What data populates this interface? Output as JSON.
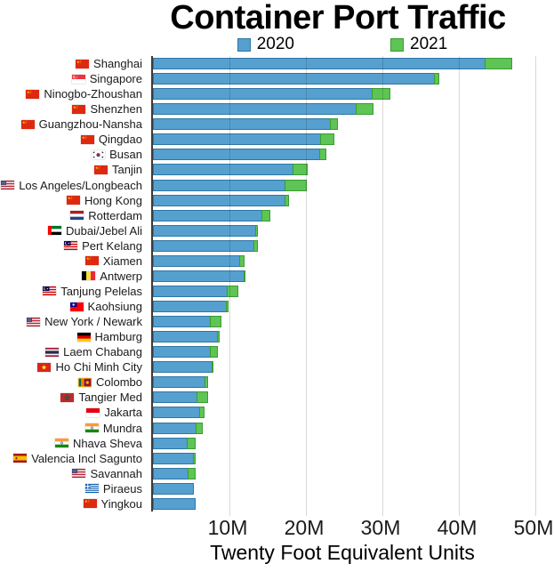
{
  "chart_data": {
    "type": "bar",
    "orientation": "horizontal",
    "title": "Container Port Traffic",
    "xlabel": "Twenty Foot Equivalent Units",
    "x_ticks": [
      "10M",
      "20M",
      "30M",
      "40M",
      "50M"
    ],
    "xlim_millions": [
      0,
      50
    ],
    "grid": true,
    "legend_position": "top",
    "value_unit": "million TEU",
    "bar_style": "overlaid; green (2021) visible only where it exceeds blue (2020)",
    "series": [
      {
        "name": "2020",
        "color": "#55A0CF",
        "border_color": "#2F76A6"
      },
      {
        "name": "2021",
        "color": "#5EC455",
        "border_color": "#3A9C30"
      }
    ],
    "ports": [
      {
        "name": "Shanghai",
        "country": "cn",
        "teu_2020_millions": 43.5,
        "teu_2021_millions": 47.0
      },
      {
        "name": "Singapore",
        "country": "sg",
        "teu_2020_millions": 36.9,
        "teu_2021_millions": 37.5
      },
      {
        "name": "Ninogbo-Zhoushan",
        "country": "cn",
        "teu_2020_millions": 28.7,
        "teu_2021_millions": 31.1
      },
      {
        "name": "Shenzhen",
        "country": "cn",
        "teu_2020_millions": 26.6,
        "teu_2021_millions": 28.8
      },
      {
        "name": "Guangzhou-Nansha",
        "country": "cn",
        "teu_2020_millions": 23.2,
        "teu_2021_millions": 24.2
      },
      {
        "name": "Qingdao",
        "country": "cn",
        "teu_2020_millions": 22.0,
        "teu_2021_millions": 23.7
      },
      {
        "name": "Busan",
        "country": "kr",
        "teu_2020_millions": 21.8,
        "teu_2021_millions": 22.7
      },
      {
        "name": "Tanjin",
        "country": "cn",
        "teu_2020_millions": 18.4,
        "teu_2021_millions": 20.3
      },
      {
        "name": "Los Angeles/Longbeach",
        "country": "us",
        "teu_2020_millions": 17.3,
        "teu_2021_millions": 20.1
      },
      {
        "name": "Hong Kong",
        "country": "cn",
        "teu_2020_millions": 17.3,
        "teu_2021_millions": 17.8
      },
      {
        "name": "Rotterdam",
        "country": "nl",
        "teu_2020_millions": 14.3,
        "teu_2021_millions": 15.3
      },
      {
        "name": "Dubai/Jebel Ali",
        "country": "ae",
        "teu_2020_millions": 13.5,
        "teu_2021_millions": 13.7
      },
      {
        "name": "Pert Kelang",
        "country": "my",
        "teu_2020_millions": 13.2,
        "teu_2021_millions": 13.7
      },
      {
        "name": "Xiamen",
        "country": "cn",
        "teu_2020_millions": 11.4,
        "teu_2021_millions": 12.0
      },
      {
        "name": "Antwerp",
        "country": "be",
        "teu_2020_millions": 12.0,
        "teu_2021_millions": 12.1
      },
      {
        "name": "Tanjung Pelelas",
        "country": "my",
        "teu_2020_millions": 9.8,
        "teu_2021_millions": 11.2
      },
      {
        "name": "Kaohsiung",
        "country": "tw",
        "teu_2020_millions": 9.6,
        "teu_2021_millions": 9.9
      },
      {
        "name": "New York / Newark",
        "country": "us",
        "teu_2020_millions": 7.6,
        "teu_2021_millions": 9.0
      },
      {
        "name": "Hamburg",
        "country": "de",
        "teu_2020_millions": 8.5,
        "teu_2021_millions": 8.7
      },
      {
        "name": "Laem Chabang",
        "country": "th",
        "teu_2020_millions": 7.5,
        "teu_2021_millions": 8.5
      },
      {
        "name": "Ho Chi Minh City",
        "country": "vn",
        "teu_2020_millions": 7.8,
        "teu_2021_millions": 7.9
      },
      {
        "name": "Colombo",
        "country": "lk",
        "teu_2020_millions": 6.9,
        "teu_2021_millions": 7.2
      },
      {
        "name": "Tangier Med",
        "country": "ma",
        "teu_2020_millions": 5.8,
        "teu_2021_millions": 7.2
      },
      {
        "name": "Jakarta",
        "country": "id",
        "teu_2020_millions": 6.2,
        "teu_2021_millions": 6.7
      },
      {
        "name": "Mundra",
        "country": "in",
        "teu_2020_millions": 5.7,
        "teu_2021_millions": 6.5
      },
      {
        "name": "Nhava Sheva",
        "country": "in",
        "teu_2020_millions": 4.5,
        "teu_2021_millions": 5.6
      },
      {
        "name": "Valencia Incl Sagunto",
        "country": "es",
        "teu_2020_millions": 5.3,
        "teu_2021_millions": 5.6
      },
      {
        "name": "Savannah",
        "country": "us",
        "teu_2020_millions": 4.7,
        "teu_2021_millions": 5.6
      },
      {
        "name": "Piraeus",
        "country": "gr",
        "teu_2020_millions": 5.3,
        "teu_2021_millions": 5.3
      },
      {
        "name": "Yingkou",
        "country": "cn",
        "teu_2020_millions": 5.6,
        "teu_2021_millions": 5.6
      }
    ]
  },
  "colors": {
    "background": "#FFFFFF",
    "gridline": "#D9D9D9",
    "axis_line": "#3B3B3B",
    "text": "#111111"
  }
}
